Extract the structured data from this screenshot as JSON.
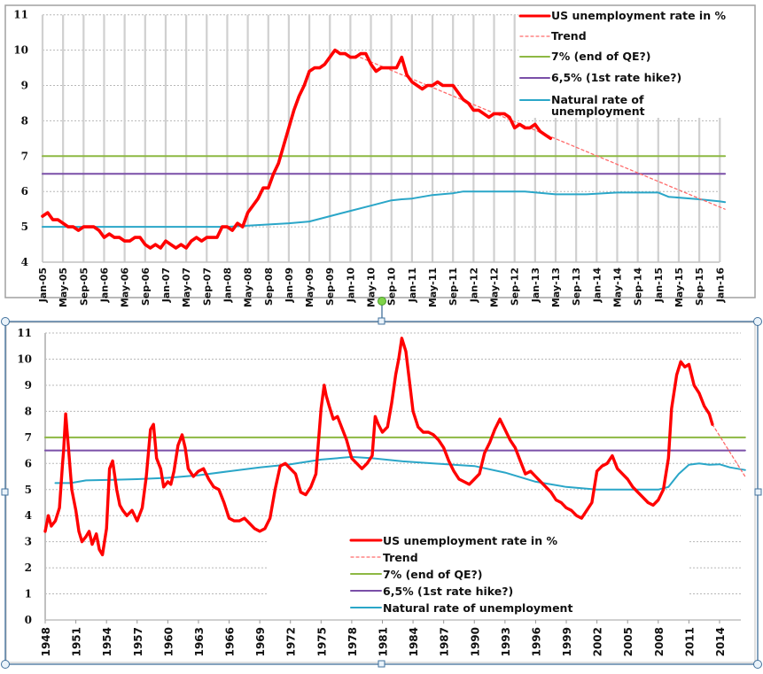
{
  "colors": {
    "unemployment": "#ff0000",
    "trend": "#ff6b6b",
    "seven_pct": "#8db843",
    "six_five_pct": "#7a4fa8",
    "natural": "#2aa6c8",
    "grid": "#c8c8c8",
    "selection": "#41719c"
  },
  "chart_data": [
    {
      "type": "line",
      "title": "",
      "xlabel": "",
      "ylabel": "",
      "ylim": [
        4,
        11
      ],
      "yticks": [
        "4",
        "5",
        "6",
        "7",
        "8",
        "9",
        "10",
        "11"
      ],
      "xticks": [
        "Jan-05",
        "May-05",
        "Sep-05",
        "Jan-06",
        "May-06",
        "Sep-06",
        "Jan-07",
        "May-07",
        "Sep-07",
        "Jan-08",
        "May-08",
        "Sep-08",
        "Jan-09",
        "May-09",
        "Sep-09",
        "Jan-10",
        "May-10",
        "Sep-10",
        "Jan-11",
        "May-11",
        "Sep-11",
        "Jan-12",
        "May-12",
        "Sep-12",
        "Jan-13",
        "May-13",
        "Sep-13",
        "Jan-14",
        "May-14",
        "Sep-14",
        "Jan-15",
        "May-15",
        "Sep-15",
        "Jan-16"
      ],
      "x_unit": "months since Jan-05",
      "legend_position": "top-right",
      "legend": [
        {
          "key": "unemployment",
          "label": "US unemployment rate in %",
          "style": "solid"
        },
        {
          "key": "trend",
          "label": "Trend",
          "style": "dashed"
        },
        {
          "key": "seven_pct",
          "label": "7% (end of QE?)",
          "style": "solid"
        },
        {
          "key": "six_five_pct",
          "label": "6,5%  (1st rate hike?)",
          "style": "solid"
        },
        {
          "key": "natural",
          "label": "Natural rate of unemployment",
          "style": "solid"
        }
      ],
      "series": [
        {
          "key": "unemployment",
          "name": "US unemployment rate in %",
          "x": [
            0,
            1,
            2,
            3,
            4,
            5,
            6,
            7,
            8,
            9,
            10,
            11,
            12,
            13,
            14,
            15,
            16,
            17,
            18,
            19,
            20,
            21,
            22,
            23,
            24,
            25,
            26,
            27,
            28,
            29,
            30,
            31,
            32,
            33,
            34,
            35,
            36,
            37,
            38,
            39,
            40,
            41,
            42,
            43,
            44,
            45,
            46,
            47,
            48,
            49,
            50,
            51,
            52,
            53,
            54,
            55,
            56,
            57,
            58,
            59,
            60,
            61,
            62,
            63,
            64,
            65,
            66,
            67,
            68,
            69,
            70,
            71,
            72,
            73,
            74,
            75,
            76,
            77,
            78,
            79,
            80,
            81,
            82,
            83,
            84,
            85,
            86,
            87,
            88,
            89,
            90,
            91,
            92,
            93,
            94,
            95,
            96,
            97,
            98,
            99
          ],
          "y": [
            5.3,
            5.4,
            5.2,
            5.2,
            5.1,
            5.0,
            5.0,
            4.9,
            5.0,
            5.0,
            5.0,
            4.9,
            4.7,
            4.8,
            4.7,
            4.7,
            4.6,
            4.6,
            4.7,
            4.7,
            4.5,
            4.4,
            4.5,
            4.4,
            4.6,
            4.5,
            4.4,
            4.5,
            4.4,
            4.6,
            4.7,
            4.6,
            4.7,
            4.7,
            4.7,
            5.0,
            5.0,
            4.9,
            5.1,
            5.0,
            5.4,
            5.6,
            5.8,
            6.1,
            6.1,
            6.5,
            6.8,
            7.3,
            7.8,
            8.3,
            8.7,
            9.0,
            9.4,
            9.5,
            9.5,
            9.6,
            9.8,
            10.0,
            9.9,
            9.9,
            9.8,
            9.8,
            9.9,
            9.9,
            9.6,
            9.4,
            9.5,
            9.5,
            9.5,
            9.5,
            9.8,
            9.3,
            9.1,
            9.0,
            8.9,
            9.0,
            9.0,
            9.1,
            9.0,
            9.0,
            9.0,
            8.8,
            8.6,
            8.5,
            8.3,
            8.3,
            8.2,
            8.1,
            8.2,
            8.2,
            8.2,
            8.1,
            7.8,
            7.9,
            7.8,
            7.8,
            7.9,
            7.7,
            7.6,
            7.5
          ]
        },
        {
          "key": "trend",
          "name": "Trend",
          "x": [
            61,
            133
          ],
          "y": [
            9.85,
            5.5
          ]
        },
        {
          "key": "seven_pct",
          "name": "7% (end of QE?)",
          "x": [
            0,
            133
          ],
          "y": [
            7,
            7
          ]
        },
        {
          "key": "six_five_pct",
          "name": "6,5%  (1st rate hike?)",
          "x": [
            0,
            133
          ],
          "y": [
            6.5,
            6.5
          ]
        },
        {
          "key": "natural",
          "name": "Natural rate of unemployment",
          "x": [
            0,
            36,
            48,
            52,
            56,
            60,
            64,
            68,
            70,
            72,
            76,
            80,
            82,
            88,
            94,
            100,
            106,
            112,
            120,
            122,
            128,
            132,
            133
          ],
          "y": [
            5.0,
            5.0,
            5.1,
            5.15,
            5.3,
            5.45,
            5.6,
            5.75,
            5.78,
            5.8,
            5.9,
            5.95,
            6.0,
            6.0,
            6.0,
            5.92,
            5.92,
            5.97,
            5.97,
            5.85,
            5.78,
            5.72,
            5.7
          ]
        }
      ]
    },
    {
      "type": "line",
      "title": "",
      "xlabel": "",
      "ylabel": "",
      "ylim": [
        0,
        11
      ],
      "yticks": [
        "0",
        "1",
        "2",
        "3",
        "4",
        "5",
        "6",
        "7",
        "8",
        "9",
        "10",
        "11"
      ],
      "xticks": [
        "1948",
        "1951",
        "1954",
        "1957",
        "1960",
        "1963",
        "1966",
        "1969",
        "1972",
        "1975",
        "1978",
        "1981",
        "1984",
        "1987",
        "1990",
        "1993",
        "1996",
        "1999",
        "2002",
        "2005",
        "2008",
        "2011",
        "2014"
      ],
      "legend_position": "bottom-center",
      "legend": [
        {
          "key": "unemployment",
          "label": "US unemployment rate in %",
          "style": "solid"
        },
        {
          "key": "trend",
          "label": "Trend",
          "style": "dashed"
        },
        {
          "key": "seven_pct",
          "label": "7% (end of QE?)",
          "style": "solid"
        },
        {
          "key": "six_five_pct",
          "label": "6,5%  (1st rate hike?)",
          "style": "solid"
        },
        {
          "key": "natural",
          "label": "Natural rate of unemployment",
          "style": "solid"
        }
      ],
      "series": [
        {
          "key": "unemployment",
          "name": "US unemployment rate in %",
          "x": [
            1948.0,
            1948.3,
            1948.6,
            1949.0,
            1949.4,
            1949.7,
            1949.8,
            1950.0,
            1950.3,
            1950.6,
            1951.0,
            1951.3,
            1951.6,
            1952.0,
            1952.3,
            1952.6,
            1953.0,
            1953.3,
            1953.6,
            1954.0,
            1954.3,
            1954.6,
            1955.0,
            1955.3,
            1955.6,
            1956.0,
            1956.5,
            1957.0,
            1957.5,
            1957.9,
            1958.3,
            1958.6,
            1958.9,
            1959.3,
            1959.6,
            1960.0,
            1960.3,
            1960.6,
            1961.0,
            1961.4,
            1961.7,
            1962.0,
            1962.5,
            1963.0,
            1963.5,
            1964.0,
            1964.5,
            1965.0,
            1965.5,
            1966.0,
            1966.5,
            1967.0,
            1967.5,
            1968.0,
            1968.5,
            1969.0,
            1969.5,
            1970.0,
            1970.5,
            1971.0,
            1971.5,
            1972.0,
            1972.5,
            1973.0,
            1973.5,
            1974.0,
            1974.5,
            1975.0,
            1975.3,
            1975.5,
            1975.8,
            1976.2,
            1976.6,
            1977.0,
            1977.5,
            1978.0,
            1978.5,
            1979.0,
            1979.5,
            1980.0,
            1980.3,
            1980.6,
            1981.0,
            1981.5,
            1981.9,
            1982.3,
            1982.6,
            1982.9,
            1983.3,
            1983.7,
            1984.0,
            1984.5,
            1985.0,
            1985.5,
            1986.0,
            1986.5,
            1987.0,
            1987.5,
            1988.0,
            1988.5,
            1989.0,
            1989.5,
            1990.0,
            1990.5,
            1991.0,
            1991.5,
            1992.0,
            1992.5,
            1993.0,
            1993.5,
            1994.0,
            1994.5,
            1995.0,
            1995.5,
            1996.0,
            1996.5,
            1997.0,
            1997.5,
            1998.0,
            1998.5,
            1999.0,
            1999.5,
            2000.0,
            2000.5,
            2001.0,
            2001.5,
            2002.0,
            2002.5,
            2003.0,
            2003.5,
            2004.0,
            2004.5,
            2005.0,
            2005.5,
            2006.0,
            2006.5,
            2007.0,
            2007.5,
            2008.0,
            2008.5,
            2009.0,
            2009.3,
            2009.8,
            2010.2,
            2010.6,
            2011.0,
            2011.5,
            2012.0,
            2012.5,
            2013.0,
            2013.3
          ],
          "y": [
            3.4,
            4.0,
            3.6,
            3.8,
            4.3,
            6.0,
            6.5,
            7.9,
            6.5,
            5.0,
            4.2,
            3.4,
            3.0,
            3.2,
            3.4,
            2.9,
            3.3,
            2.7,
            2.5,
            3.5,
            5.8,
            6.1,
            5.0,
            4.4,
            4.2,
            4.0,
            4.2,
            3.8,
            4.3,
            5.5,
            7.3,
            7.5,
            6.2,
            5.8,
            5.1,
            5.3,
            5.2,
            5.7,
            6.7,
            7.1,
            6.6,
            5.8,
            5.5,
            5.7,
            5.8,
            5.4,
            5.1,
            5.0,
            4.5,
            3.9,
            3.8,
            3.8,
            3.9,
            3.7,
            3.5,
            3.4,
            3.5,
            3.9,
            5.0,
            5.9,
            6.0,
            5.8,
            5.6,
            4.9,
            4.8,
            5.1,
            5.6,
            8.1,
            9.0,
            8.6,
            8.2,
            7.7,
            7.8,
            7.4,
            6.9,
            6.2,
            6.0,
            5.8,
            6.0,
            6.3,
            7.8,
            7.5,
            7.2,
            7.4,
            8.3,
            9.4,
            10.0,
            10.8,
            10.3,
            9.0,
            8.0,
            7.4,
            7.2,
            7.2,
            7.1,
            6.9,
            6.6,
            6.1,
            5.7,
            5.4,
            5.3,
            5.2,
            5.4,
            5.6,
            6.4,
            6.8,
            7.3,
            7.7,
            7.3,
            6.9,
            6.6,
            6.1,
            5.6,
            5.7,
            5.5,
            5.3,
            5.1,
            4.9,
            4.6,
            4.5,
            4.3,
            4.2,
            4.0,
            3.9,
            4.2,
            4.5,
            5.7,
            5.9,
            6.0,
            6.3,
            5.8,
            5.6,
            5.4,
            5.1,
            4.9,
            4.7,
            4.5,
            4.4,
            4.6,
            5.0,
            6.2,
            8.1,
            9.4,
            9.9,
            9.7,
            9.8,
            9.0,
            8.7,
            8.2,
            7.9,
            7.5
          ]
        },
        {
          "key": "trend",
          "name": "Trend",
          "x": [
            2013.3,
            2016.5
          ],
          "y": [
            7.5,
            5.5
          ]
        },
        {
          "key": "seven_pct",
          "name": "7% (end of QE?)",
          "x": [
            1948,
            2016.5
          ],
          "y": [
            7,
            7
          ]
        },
        {
          "key": "six_five_pct",
          "name": "6,5%  (1st rate hike?)",
          "x": [
            1948,
            2016.5
          ],
          "y": [
            6.5,
            6.5
          ]
        },
        {
          "key": "natural",
          "name": "Natural rate of unemployment",
          "x": [
            1949,
            1950.5,
            1952,
            1954,
            1957,
            1960,
            1963,
            1966,
            1969,
            1972,
            1975,
            1978,
            1980,
            1983,
            1986,
            1990,
            1993,
            1996,
            1999,
            2002,
            2005,
            2008,
            2009,
            2010,
            2011,
            2012,
            2013,
            2014,
            2015,
            2016.5
          ],
          "y": [
            5.25,
            5.25,
            5.35,
            5.37,
            5.4,
            5.45,
            5.55,
            5.7,
            5.85,
            5.97,
            6.15,
            6.25,
            6.2,
            6.08,
            6.0,
            5.9,
            5.65,
            5.3,
            5.1,
            5.0,
            5.0,
            5.0,
            5.1,
            5.6,
            5.95,
            6.0,
            5.95,
            5.97,
            5.85,
            5.75
          ]
        }
      ]
    }
  ]
}
